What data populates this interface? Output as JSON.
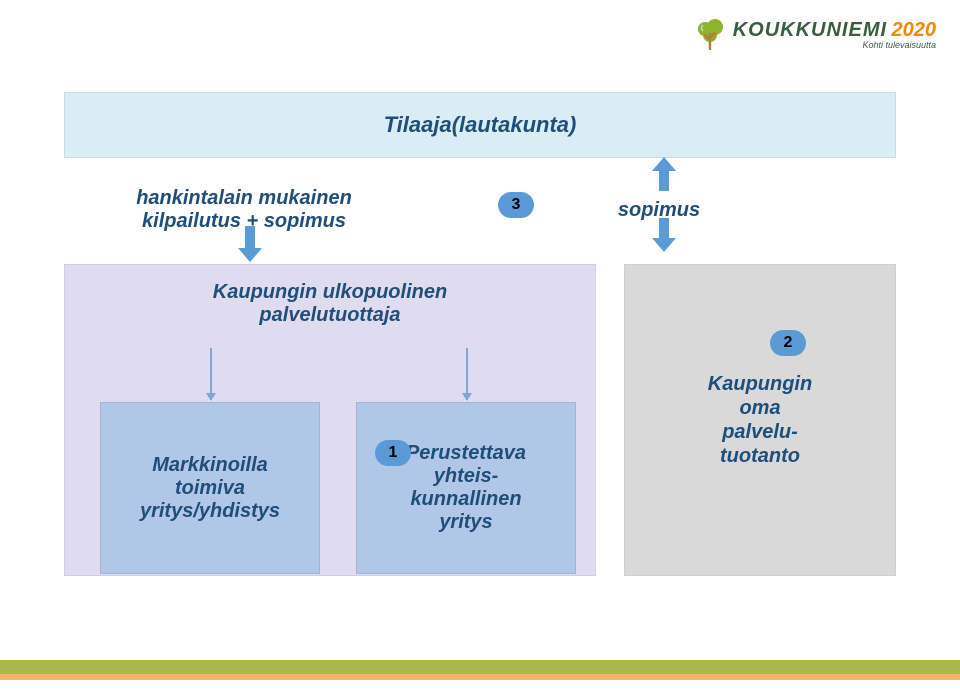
{
  "logo": {
    "main": "KOUKKUNIEMI",
    "year": "2020",
    "sub": "Kohti tulevaisuutta",
    "tree_fill": "#8fb32e",
    "trunk_fill": "#b07d3a",
    "main_color": "#385d3f",
    "year_color": "#f08a00",
    "main_fontsize": 20
  },
  "topbar": {
    "label": "Tilaaja(lautakunta)",
    "bg": "#d9edf7",
    "text_color": "#1f4e79",
    "fontsize": 22
  },
  "subrow": {
    "left": "hankintalain mukainen\nkilpailutus + sopimus",
    "right": "sopimus",
    "text_color": "#1f4e79",
    "fontsize": 20
  },
  "badges": {
    "b1": "1",
    "b2": "2",
    "b3": "3",
    "bg": "#5b9bd5"
  },
  "lavender": {
    "title": "Kaupungin ulkopuolinen\npalvelutuottaja",
    "bg": "#dedcee",
    "inner_bg": "#b1c7e7",
    "left_box": "Markkinoilla\ntoimiva\nyritys/yhdistys",
    "right_box": "Perustettava\nyhteis-\nkunnallinen\nyritys"
  },
  "greybox": {
    "text": "Kaupungin\noma\npalvelu-\ntuotanto",
    "bg": "#d9d9d9"
  },
  "arrows": {
    "fill": "#5b9bd5"
  },
  "footer": {
    "olive": "#a9b84b",
    "orange": "#f6b56a"
  }
}
